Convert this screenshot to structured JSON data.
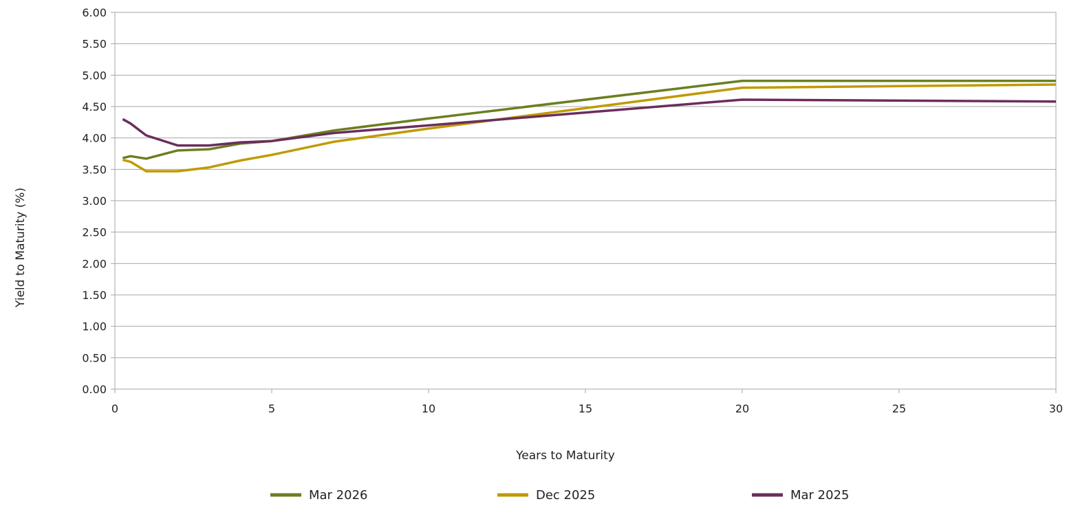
{
  "chart_data": {
    "type": "line",
    "title": "",
    "xlabel": "Years to Maturity",
    "ylabel": "Yield to Maturity (%)",
    "xlim": [
      0,
      30
    ],
    "ylim": [
      0,
      6
    ],
    "xticks": [
      0,
      5,
      10,
      15,
      20,
      25,
      30
    ],
    "yticks": [
      0,
      0.5,
      1,
      1.5,
      2,
      2.5,
      3,
      3.5,
      4,
      4.5,
      5,
      5.5,
      6
    ],
    "ytick_labels": [
      "0.00",
      "0.50",
      "1.00",
      "1.50",
      "2.00",
      "2.50",
      "3.00",
      "3.50",
      "4.00",
      "4.50",
      "5.00",
      "5.50",
      "6.00"
    ],
    "xtick_labels": [
      "0",
      "5",
      "10",
      "15",
      "20",
      "25",
      "30"
    ],
    "grid": "horizontal",
    "legend_position": "bottom",
    "series": [
      {
        "name": "Mar 2026",
        "color": "#6b7f1f",
        "x": [
          0.25,
          0.5,
          1,
          2,
          3,
          4,
          5,
          7,
          10,
          20,
          30
        ],
        "y": [
          3.68,
          3.71,
          3.67,
          3.8,
          3.82,
          3.91,
          3.95,
          4.12,
          4.31,
          4.91,
          4.91
        ]
      },
      {
        "name": "Dec 2025",
        "color": "#c09a00",
        "x": [
          0.25,
          0.5,
          1,
          2,
          3,
          4,
          5,
          7,
          10,
          20,
          30
        ],
        "y": [
          3.65,
          3.62,
          3.47,
          3.47,
          3.53,
          3.64,
          3.73,
          3.94,
          4.15,
          4.8,
          4.85
        ]
      },
      {
        "name": "Mar 2025",
        "color": "#6b2d5c",
        "x": [
          0.25,
          0.5,
          1,
          2,
          3,
          4,
          5,
          7,
          10,
          20,
          30
        ],
        "y": [
          4.3,
          4.23,
          4.04,
          3.88,
          3.88,
          3.93,
          3.95,
          4.08,
          4.2,
          4.61,
          4.58
        ]
      }
    ]
  }
}
